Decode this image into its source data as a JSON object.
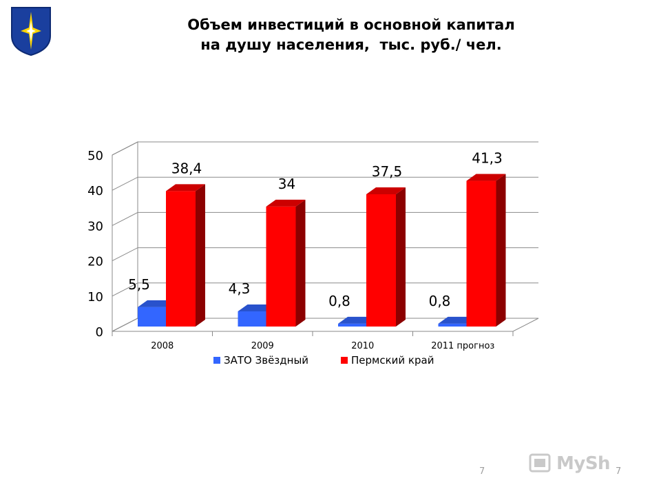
{
  "title": {
    "line1": "Объем инвестиций в основной капитал",
    "line2": "на душу населения,  тыс. руб./ чел."
  },
  "chart_data": {
    "type": "bar",
    "categories": [
      "2008",
      "2009",
      "2010",
      "2011 прогноз"
    ],
    "series": [
      {
        "name": "ЗАТО Звёздный",
        "values": [
          5.5,
          4.3,
          0.8,
          0.8
        ],
        "labels": [
          "5,5",
          "4,3",
          "0,8",
          "0,8"
        ],
        "color": "#3366ff"
      },
      {
        "name": "Пермский край",
        "values": [
          38.4,
          34,
          37.5,
          41.3
        ],
        "labels": [
          "38,4",
          "34",
          "37,5",
          "41,3"
        ],
        "color": "#ff0000"
      }
    ],
    "y_ticks": [
      "0",
      "10",
      "20",
      "30",
      "40",
      "50"
    ],
    "ylim": [
      0,
      50
    ],
    "grid": true,
    "legend": "bottom",
    "style": "3d-column"
  },
  "footer": {
    "page_number": "7",
    "page_number_2": "7",
    "watermark": "MySh"
  }
}
